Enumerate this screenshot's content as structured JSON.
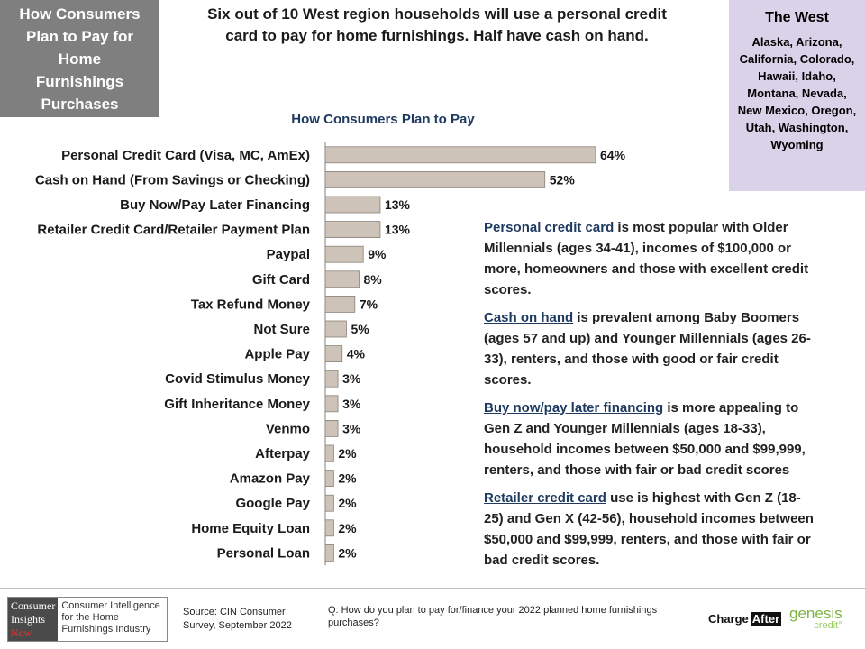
{
  "title_box": {
    "lines": [
      "How Consumers",
      "Plan to Pay for",
      "Home",
      "Furnishings",
      "Purchases"
    ]
  },
  "headline": "Six out of 10 West region households will use a personal credit card to pay for home furnishings.  Half have cash on hand.",
  "region": {
    "title": "The West",
    "states": "Alaska, Arizona, California, Colorado, Hawaii, Idaho, Montana, Nevada, New Mexico, Oregon, Utah, Washington, Wyoming"
  },
  "colors": {
    "bar_fill": "#cdc3b8",
    "bar_stroke": "#8a8178",
    "title_gray": "#7f7f7f",
    "region_bg": "#d9d2e9",
    "accent_navy": "#1f3a5f"
  },
  "chart_data": {
    "type": "bar",
    "orientation": "horizontal",
    "title": "How Consumers Plan to Pay",
    "categories": [
      "Personal Credit Card (Visa, MC, AmEx)",
      "Cash on Hand (From Savings or Checking)",
      "Buy Now/Pay Later Financing",
      "Retailer Credit Card/Retailer Payment Plan",
      "Paypal",
      "Gift Card",
      "Tax Refund Money",
      "Not Sure",
      "Apple Pay",
      "Covid Stimulus Money",
      "Gift Inheritance Money",
      "Venmo",
      "Afterpay",
      "Amazon Pay",
      "Google Pay",
      "Home Equity Loan",
      "Personal Loan"
    ],
    "values": [
      64,
      52,
      13,
      13,
      9,
      8,
      7,
      5,
      4,
      3,
      3,
      3,
      2,
      2,
      2,
      2,
      2
    ],
    "value_suffix": "%",
    "xlim": [
      0,
      100
    ],
    "grid": false,
    "legend": "none"
  },
  "notes": [
    {
      "key": "Personal credit card",
      "text": " is most popular with Older Millennials (ages 34-41), incomes of $100,000 or more, homeowners and those with excellent credit scores."
    },
    {
      "key": "Cash on hand",
      "text": " is prevalent among Baby Boomers (ages 57 and up) and Younger Millennials (ages 26-33), renters, and those with good or fair credit scores."
    },
    {
      "key": "Buy now/pay later financing",
      "text": " is more appealing to Gen Z and Younger Millennials (ages 18-33), household incomes between $50,000 and $99,999, renters, and those with fair or bad credit scores"
    },
    {
      "key": "Retailer credit card",
      "text": " use is highest with Gen Z (18-25) and Gen X (42-56), household incomes between $50,000 and $99,999, renters, and those with fair or bad credit scores."
    }
  ],
  "footer": {
    "logo_mark": [
      "Consumer",
      "Insights",
      "Now"
    ],
    "logo_text": "Consumer Intelligence for the Home Furnishings Industry",
    "source": "Source: CIN Consumer Survey, September  2022",
    "question": "Q: How do you plan to pay for/finance your 2022 planned home furnishings purchases?",
    "chargeafter_1": "Charge",
    "chargeafter_2": "After",
    "genesis": "genesis",
    "genesis_sub": "credit°"
  }
}
